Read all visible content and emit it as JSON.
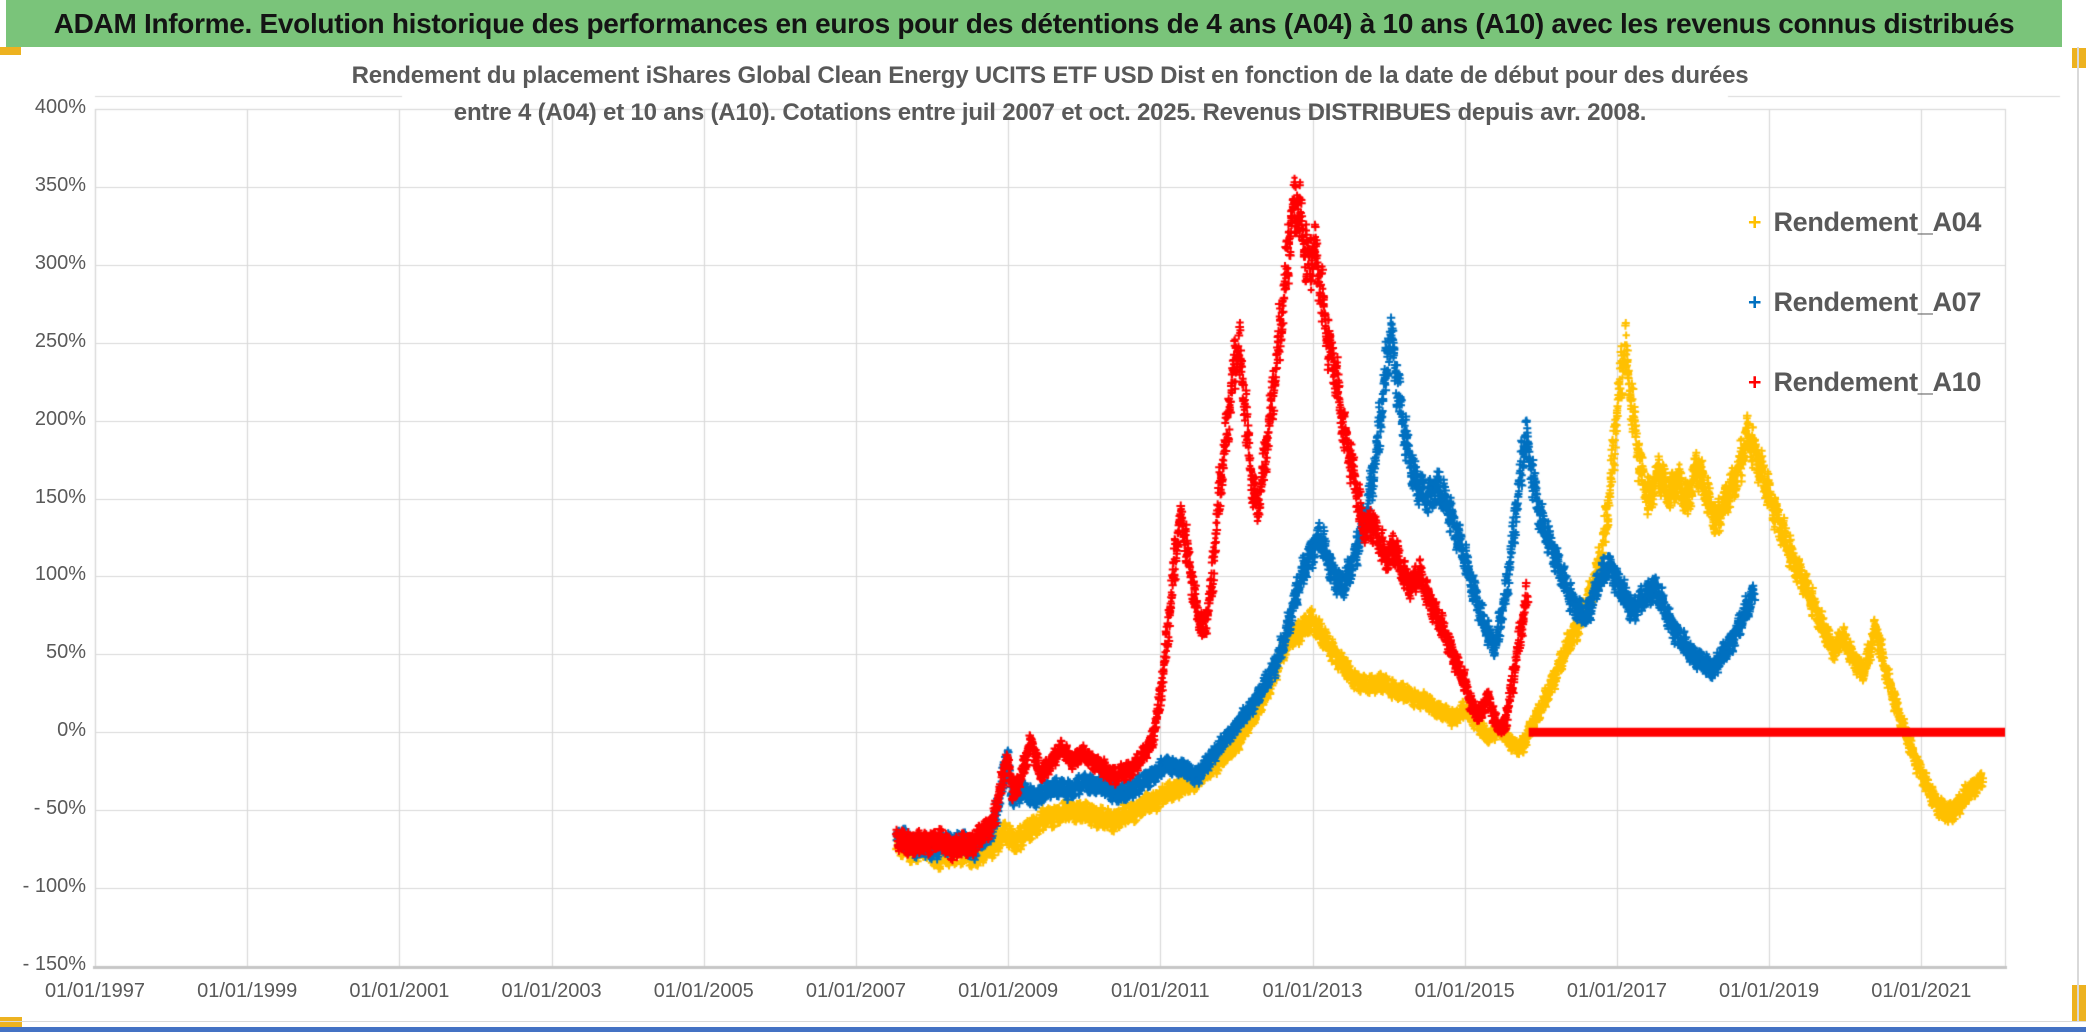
{
  "header": {
    "title": "ADAM Informe. Evolution historique des performances en euros pour des détentions de 4 ans (A04) à 10 ans (A10) avec les revenus connus distribués"
  },
  "palette": {
    "header_green": "#7AC47A",
    "accent_orange": "#EDB220",
    "grid_gray": "#D9D9D9",
    "axis_gray": "#C6C6C6",
    "text_gray": "#595959",
    "bottom_strip_blue": "#4472C4",
    "series_gold": "#FFC000",
    "series_blue": "#0070C0",
    "series_red": "#FF0000"
  },
  "chart_data": {
    "type": "scatter",
    "title_lines": [
      "Rendement du placement iShares Global Clean Energy UCITS ETF USD Dist en fonction de la date de début pour des durées",
      "entre 4 (A04) et 10 ans (A10). Cotations entre juil 2007 et oct. 2025. Revenus DISTRIBUES depuis avr. 2008."
    ],
    "xlabel": "",
    "ylabel": "",
    "xlim": [
      1997,
      2022.1
    ],
    "ylim": [
      -150,
      400
    ],
    "grid": true,
    "x_format": "decimal_year_of_start_date",
    "y_unit": "percent",
    "x_tick_years": [
      1997,
      1999,
      2001,
      2003,
      2005,
      2007,
      2009,
      2011,
      2013,
      2015,
      2017,
      2019,
      2021
    ],
    "x_tick_labels": [
      "01/01/1997",
      "01/01/1999",
      "01/01/2001",
      "01/01/2003",
      "01/01/2005",
      "01/01/2007",
      "01/01/2009",
      "01/01/2011",
      "01/01/2013",
      "01/01/2015",
      "01/01/2017",
      "01/01/2019",
      "01/01/2021"
    ],
    "y_tick_values": [
      400,
      350,
      300,
      250,
      200,
      150,
      100,
      50,
      0,
      -50,
      -100,
      -150
    ],
    "y_tick_labels": [
      "400%",
      "350%",
      "300%",
      "250%",
      "200%",
      "150%",
      "100%",
      "50%",
      "0%",
      "- 50%",
      "- 100%",
      "- 150%"
    ],
    "legend": {
      "position": "top-right",
      "items": [
        {
          "label": "Rendement_A04",
          "color": "#FFC000",
          "marker": "+"
        },
        {
          "label": "Rendement_A07",
          "color": "#0070C0",
          "marker": "+"
        },
        {
          "label": "Rendement_A10",
          "color": "#FF0000",
          "marker": "+"
        }
      ]
    },
    "series": [
      {
        "name": "Rendement_A04",
        "color": "#FFC000",
        "marker": "+",
        "anchors": [
          [
            2007.54,
            -70
          ],
          [
            2007.7,
            -76
          ],
          [
            2007.9,
            -74
          ],
          [
            2008.1,
            -80
          ],
          [
            2008.35,
            -77
          ],
          [
            2008.6,
            -79
          ],
          [
            2008.8,
            -72
          ],
          [
            2008.95,
            -65
          ],
          [
            2009.1,
            -70
          ],
          [
            2009.3,
            -62
          ],
          [
            2009.5,
            -55
          ],
          [
            2009.7,
            -52
          ],
          [
            2009.9,
            -50
          ],
          [
            2010.1,
            -53
          ],
          [
            2010.35,
            -57
          ],
          [
            2010.6,
            -52
          ],
          [
            2010.8,
            -47
          ],
          [
            2011.0,
            -42
          ],
          [
            2011.2,
            -36
          ],
          [
            2011.4,
            -33
          ],
          [
            2011.6,
            -26
          ],
          [
            2011.8,
            -18
          ],
          [
            2012.0,
            -8
          ],
          [
            2012.2,
            8
          ],
          [
            2012.4,
            25
          ],
          [
            2012.55,
            45
          ],
          [
            2012.7,
            60
          ],
          [
            2012.85,
            66
          ],
          [
            2013.0,
            72
          ],
          [
            2013.15,
            60
          ],
          [
            2013.3,
            50
          ],
          [
            2013.5,
            36
          ],
          [
            2013.7,
            30
          ],
          [
            2013.9,
            32
          ],
          [
            2014.1,
            27
          ],
          [
            2014.3,
            23
          ],
          [
            2014.5,
            19
          ],
          [
            2014.7,
            13
          ],
          [
            2014.85,
            9
          ],
          [
            2015.0,
            15
          ],
          [
            2015.15,
            7
          ],
          [
            2015.3,
            -4
          ],
          [
            2015.45,
            3
          ],
          [
            2015.6,
            -7
          ],
          [
            2015.75,
            -10
          ],
          [
            2015.9,
            6
          ],
          [
            2016.05,
            20
          ],
          [
            2016.2,
            38
          ],
          [
            2016.35,
            55
          ],
          [
            2016.5,
            70
          ],
          [
            2016.65,
            88
          ],
          [
            2016.8,
            115
          ],
          [
            2016.9,
            150
          ],
          [
            2017.0,
            205
          ],
          [
            2017.1,
            248
          ],
          [
            2017.2,
            210
          ],
          [
            2017.3,
            172
          ],
          [
            2017.42,
            148
          ],
          [
            2017.55,
            168
          ],
          [
            2017.68,
            152
          ],
          [
            2017.8,
            163
          ],
          [
            2017.92,
            146
          ],
          [
            2018.05,
            172
          ],
          [
            2018.18,
            152
          ],
          [
            2018.3,
            136
          ],
          [
            2018.45,
            150
          ],
          [
            2018.6,
            168
          ],
          [
            2018.72,
            192
          ],
          [
            2018.85,
            175
          ],
          [
            2019.0,
            152
          ],
          [
            2019.15,
            132
          ],
          [
            2019.3,
            112
          ],
          [
            2019.5,
            92
          ],
          [
            2019.7,
            68
          ],
          [
            2019.85,
            52
          ],
          [
            2019.95,
            62
          ],
          [
            2020.1,
            48
          ],
          [
            2020.25,
            38
          ],
          [
            2020.4,
            68
          ],
          [
            2020.5,
            45
          ],
          [
            2020.62,
            25
          ],
          [
            2020.75,
            5
          ],
          [
            2020.9,
            -15
          ],
          [
            2021.05,
            -32
          ],
          [
            2021.2,
            -46
          ],
          [
            2021.35,
            -53
          ],
          [
            2021.5,
            -46
          ],
          [
            2021.65,
            -37
          ],
          [
            2021.8,
            -30
          ]
        ]
      },
      {
        "name": "Rendement_A07",
        "color": "#0070C0",
        "marker": "+",
        "anchors": [
          [
            2007.54,
            -68
          ],
          [
            2007.75,
            -72
          ],
          [
            2008.0,
            -74
          ],
          [
            2008.3,
            -71
          ],
          [
            2008.55,
            -74
          ],
          [
            2008.8,
            -62
          ],
          [
            2008.92,
            -35
          ],
          [
            2008.98,
            -14
          ],
          [
            2009.05,
            -42
          ],
          [
            2009.2,
            -38
          ],
          [
            2009.4,
            -42
          ],
          [
            2009.6,
            -34
          ],
          [
            2009.8,
            -38
          ],
          [
            2010.0,
            -32
          ],
          [
            2010.25,
            -35
          ],
          [
            2010.5,
            -40
          ],
          [
            2010.7,
            -34
          ],
          [
            2010.9,
            -28
          ],
          [
            2011.1,
            -20
          ],
          [
            2011.3,
            -24
          ],
          [
            2011.5,
            -28
          ],
          [
            2011.7,
            -14
          ],
          [
            2011.9,
            -2
          ],
          [
            2012.1,
            10
          ],
          [
            2012.3,
            24
          ],
          [
            2012.5,
            42
          ],
          [
            2012.65,
            62
          ],
          [
            2012.8,
            92
          ],
          [
            2012.95,
            112
          ],
          [
            2013.1,
            126
          ],
          [
            2013.25,
            104
          ],
          [
            2013.4,
            92
          ],
          [
            2013.55,
            112
          ],
          [
            2013.7,
            138
          ],
          [
            2013.85,
            182
          ],
          [
            2013.97,
            235
          ],
          [
            2014.03,
            258
          ],
          [
            2014.12,
            222
          ],
          [
            2014.22,
            188
          ],
          [
            2014.35,
            162
          ],
          [
            2014.5,
            150
          ],
          [
            2014.65,
            158
          ],
          [
            2014.8,
            142
          ],
          [
            2014.95,
            120
          ],
          [
            2015.1,
            95
          ],
          [
            2015.25,
            70
          ],
          [
            2015.4,
            54
          ],
          [
            2015.55,
            92
          ],
          [
            2015.7,
            152
          ],
          [
            2015.8,
            192
          ],
          [
            2015.9,
            162
          ],
          [
            2016.0,
            136
          ],
          [
            2016.15,
            118
          ],
          [
            2016.3,
            98
          ],
          [
            2016.45,
            80
          ],
          [
            2016.6,
            74
          ],
          [
            2016.75,
            96
          ],
          [
            2016.9,
            108
          ],
          [
            2017.05,
            92
          ],
          [
            2017.2,
            78
          ],
          [
            2017.35,
            86
          ],
          [
            2017.5,
            94
          ],
          [
            2017.65,
            76
          ],
          [
            2017.8,
            62
          ],
          [
            2017.95,
            52
          ],
          [
            2018.1,
            46
          ],
          [
            2018.25,
            40
          ],
          [
            2018.4,
            50
          ],
          [
            2018.55,
            62
          ],
          [
            2018.7,
            78
          ],
          [
            2018.8,
            90
          ]
        ]
      },
      {
        "name": "Rendement_A10",
        "color": "#FF0000",
        "marker": "+",
        "anchors": [
          [
            2007.54,
            -70
          ],
          [
            2007.8,
            -72
          ],
          [
            2008.05,
            -69
          ],
          [
            2008.3,
            -74
          ],
          [
            2008.55,
            -71
          ],
          [
            2008.8,
            -58
          ],
          [
            2008.92,
            -32
          ],
          [
            2008.98,
            -16
          ],
          [
            2009.08,
            -40
          ],
          [
            2009.2,
            -24
          ],
          [
            2009.3,
            -4
          ],
          [
            2009.42,
            -28
          ],
          [
            2009.55,
            -20
          ],
          [
            2009.7,
            -10
          ],
          [
            2009.85,
            -18
          ],
          [
            2010.0,
            -14
          ],
          [
            2010.2,
            -22
          ],
          [
            2010.4,
            -28
          ],
          [
            2010.6,
            -24
          ],
          [
            2010.75,
            -17
          ],
          [
            2010.9,
            -4
          ],
          [
            2011.0,
            22
          ],
          [
            2011.1,
            65
          ],
          [
            2011.2,
            115
          ],
          [
            2011.27,
            140
          ],
          [
            2011.37,
            112
          ],
          [
            2011.47,
            80
          ],
          [
            2011.57,
            64
          ],
          [
            2011.67,
            92
          ],
          [
            2011.77,
            150
          ],
          [
            2011.87,
            192
          ],
          [
            2011.97,
            235
          ],
          [
            2012.03,
            250
          ],
          [
            2012.12,
            205
          ],
          [
            2012.2,
            162
          ],
          [
            2012.28,
            142
          ],
          [
            2012.38,
            178
          ],
          [
            2012.5,
            225
          ],
          [
            2012.6,
            268
          ],
          [
            2012.7,
            320
          ],
          [
            2012.78,
            342
          ],
          [
            2012.86,
            325
          ],
          [
            2012.94,
            298
          ],
          [
            2013.02,
            312
          ],
          [
            2013.1,
            288
          ],
          [
            2013.2,
            252
          ],
          [
            2013.3,
            232
          ],
          [
            2013.4,
            196
          ],
          [
            2013.5,
            176
          ],
          [
            2013.6,
            150
          ],
          [
            2013.67,
            128
          ],
          [
            2013.77,
            136
          ],
          [
            2013.87,
            124
          ],
          [
            2013.97,
            110
          ],
          [
            2014.07,
            120
          ],
          [
            2014.17,
            104
          ],
          [
            2014.28,
            94
          ],
          [
            2014.4,
            102
          ],
          [
            2014.5,
            90
          ],
          [
            2014.62,
            76
          ],
          [
            2014.75,
            62
          ],
          [
            2014.88,
            46
          ],
          [
            2015.0,
            32
          ],
          [
            2015.1,
            16
          ],
          [
            2015.2,
            10
          ],
          [
            2015.3,
            24
          ],
          [
            2015.42,
            4
          ],
          [
            2015.52,
            2
          ],
          [
            2015.62,
            30
          ],
          [
            2015.72,
            60
          ],
          [
            2015.82,
            88
          ]
        ]
      }
    ],
    "zero_line": {
      "series": "Rendement_A10",
      "value": 0,
      "start": 2015.84,
      "end": 2022.1,
      "color": "#FF0000",
      "description": "thick horizontal red line at 0% from oct. 2015 to the right edge of the plot"
    }
  }
}
